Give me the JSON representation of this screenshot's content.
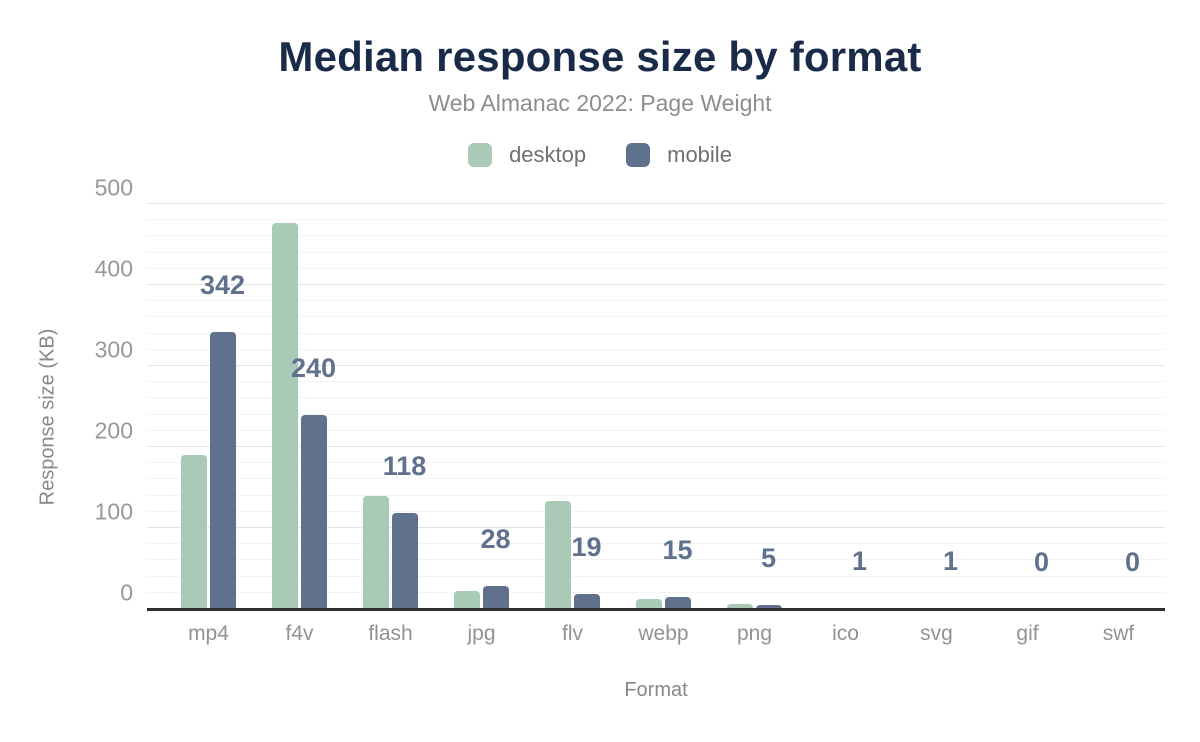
{
  "chart_data": {
    "type": "bar",
    "title": "Median response size by format",
    "subtitle": "Web Almanac 2022: Page Weight",
    "xlabel": "Format",
    "ylabel": "Response size (KB)",
    "categories": [
      "mp4",
      "f4v",
      "flash",
      "jpg",
      "flv",
      "webp",
      "png",
      "ico",
      "svg",
      "gif",
      "swf"
    ],
    "series": [
      {
        "name": "desktop",
        "color": "#A9CAB7",
        "values": [
          190,
          477,
          139,
          22,
          133,
          12,
          6,
          1,
          1,
          0,
          0
        ]
      },
      {
        "name": "mobile",
        "color": "#5F718C",
        "values": [
          342,
          240,
          118,
          28,
          19,
          15,
          5,
          1,
          1,
          0,
          0
        ]
      }
    ],
    "data_labels": {
      "labeled_series": "mobile",
      "values": [
        "342",
        "240",
        "118",
        "28",
        "19",
        "15",
        "5",
        "1",
        "1",
        "0",
        "0"
      ]
    },
    "ylim": [
      0,
      500
    ],
    "yticks": [
      0,
      100,
      200,
      300,
      400,
      500
    ],
    "minor_tick_interval": 20,
    "grid": true,
    "legend_position": "top",
    "label_color": "#5F718C",
    "title_color": "#1a2b49"
  }
}
